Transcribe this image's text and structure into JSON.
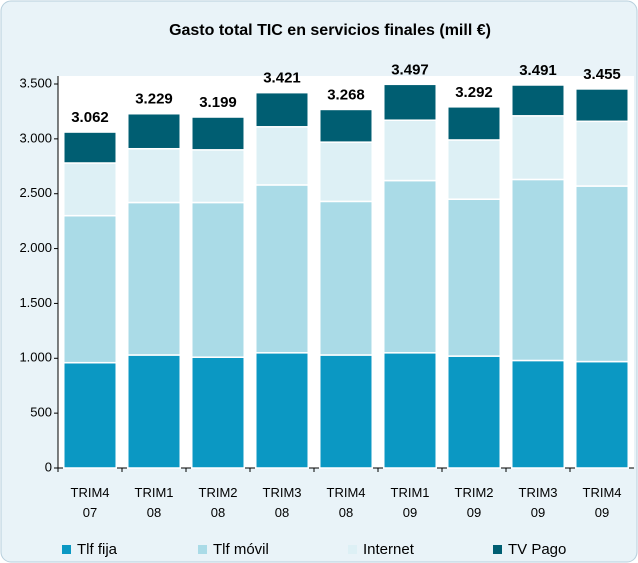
{
  "chart_data": {
    "type": "stacked_bar",
    "title": "Gasto total TIC en servicios finales (mill €)",
    "categories": [
      [
        "TRIM4",
        "07"
      ],
      [
        "TRIM1",
        "08"
      ],
      [
        "TRIM2",
        "08"
      ],
      [
        "TRIM3",
        "08"
      ],
      [
        "TRIM4",
        "08"
      ],
      [
        "TRIM1",
        "09"
      ],
      [
        "TRIM2",
        "09"
      ],
      [
        "TRIM3",
        "09"
      ],
      [
        "TRIM4",
        "09"
      ]
    ],
    "series": [
      {
        "name": "Tlf fija",
        "color": "#0b98c3",
        "values": [
          960,
          1030,
          1010,
          1050,
          1030,
          1050,
          1020,
          980,
          970
        ]
      },
      {
        "name": "Tlf móvil",
        "color": "#aadbe7",
        "values": [
          1340,
          1390,
          1410,
          1530,
          1400,
          1570,
          1430,
          1650,
          1600
        ]
      },
      {
        "name": "Internet",
        "color": "#ddf0f5",
        "values": [
          480,
          490,
          480,
          530,
          540,
          550,
          540,
          580,
          590
        ]
      },
      {
        "name": "TV Pago",
        "color": "#005e72",
        "values": [
          282,
          319,
          299,
          311,
          298,
          327,
          302,
          281,
          295
        ]
      }
    ],
    "totals": [
      3062,
      3229,
      3199,
      3421,
      3268,
      3497,
      3292,
      3491,
      3455
    ],
    "value_labels": [
      "3.062",
      "3.229",
      "3.199",
      "3.421",
      "3.268",
      "3.497",
      "3.292",
      "3.491",
      "3.455"
    ],
    "ylim": [
      0,
      3500
    ],
    "yticks": [
      0,
      500,
      {
        "value": 1000,
        "label": "1.000"
      },
      {
        "value": 1500,
        "label": "1.500"
      },
      {
        "value": 2000,
        "label": "2.000"
      },
      {
        "value": 2500,
        "label": "2.500"
      },
      {
        "value": 3000,
        "label": "3.000"
      },
      {
        "value": 3500,
        "label": "3.500"
      }
    ],
    "grid": false,
    "legend": "bottom"
  }
}
